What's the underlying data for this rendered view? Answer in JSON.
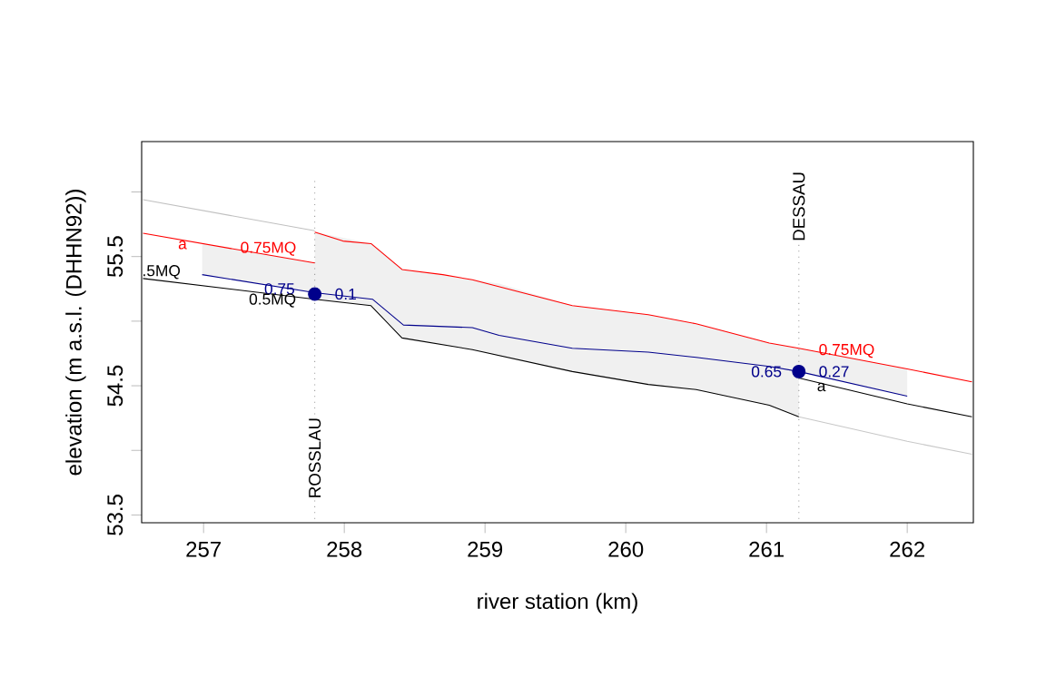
{
  "chart_data": {
    "type": "line",
    "xlabel": "river station (km)",
    "ylabel": "elevation (m a.s.l. (DHHN92))",
    "xlim": [
      256.56,
      262.47
    ],
    "ylim": [
      53.44,
      56.39
    ],
    "xticks": [
      257,
      258,
      259,
      260,
      261,
      262
    ],
    "yticks": [
      53.5,
      {
        "value": 54,
        "label": null
      },
      54.5,
      {
        "value": 55,
        "label": null
      },
      55.5,
      {
        "value": 56,
        "label": null
      }
    ],
    "series": [
      {
        "color": "#c0c0c0",
        "x": [
          256.57,
          257.79
        ],
        "values": [
          55.94,
          55.7
        ]
      },
      {
        "color": "#c8c8c8",
        "x": [
          261.23,
          262.0,
          262.46
        ],
        "values": [
          54.26,
          54.07,
          53.97
        ]
      },
      {
        "color": "#00008b",
        "x": [
          256.99,
          257.79,
          257.79,
          258.2,
          258.42,
          258.91,
          259.1,
          259.62,
          260.16,
          260.5,
          261.02,
          261.23,
          261.23,
          262.0
        ],
        "values": [
          55.36,
          55.22,
          55.22,
          55.17,
          54.97,
          54.95,
          54.89,
          54.79,
          54.76,
          54.72,
          54.65,
          54.61,
          54.61,
          54.42
        ],
        "upper": [
          55.6,
          55.45,
          55.69,
          55.6,
          55.4,
          55.32,
          55.29,
          55.12,
          55.05,
          54.98,
          54.83,
          54.79,
          54.79,
          54.63
        ],
        "lower": [
          55.36,
          55.22,
          55.17,
          55.12,
          54.87,
          54.78,
          54.73,
          54.61,
          54.51,
          54.47,
          54.35,
          54.26,
          54.61,
          54.42
        ]
      },
      {
        "color": "#ff0000",
        "x": [
          256.57,
          257.79
        ],
        "values": [
          55.68,
          55.45
        ]
      },
      {
        "color": "#ff0000",
        "x": [
          257.79,
          257.99,
          258.19,
          258.41,
          258.7,
          258.91,
          259.62,
          260.16,
          260.5,
          261.02,
          261.23,
          262.0,
          262.46
        ],
        "values": [
          55.69,
          55.62,
          55.6,
          55.4,
          55.36,
          55.32,
          55.12,
          55.05,
          54.98,
          54.83,
          54.79,
          54.63,
          54.53
        ]
      },
      {
        "color": "#000000",
        "x": [
          256.57,
          257.79,
          258.19,
          258.41,
          258.91,
          259.62,
          260.16,
          260.5,
          261.02,
          261.23
        ],
        "values": [
          55.33,
          55.17,
          55.12,
          54.87,
          54.78,
          54.61,
          54.51,
          54.47,
          54.35,
          54.26
        ]
      },
      {
        "color": "#000000",
        "x": [
          261.23,
          262.0,
          262.46
        ],
        "values": [
          54.56,
          54.36,
          54.26
        ]
      },
      {
        "type": "scatter",
        "color": "#00008b",
        "marker": "circle",
        "x": [
          257.79,
          261.23
        ],
        "values": [
          55.21,
          54.61
        ]
      }
    ],
    "ref_lines": [
      {
        "axis": "x",
        "value": 257.79,
        "label": "ROSSLAU",
        "color": "#999999",
        "line_style": "dotted"
      },
      {
        "axis": "x",
        "value": 261.23,
        "label": "DESSAU",
        "color": "#999999",
        "line_style": "dotted"
      }
    ],
    "annotations": [
      {
        "text": "0.75MQ",
        "x": 257.46,
        "y": 55.56
      },
      {
        "text": "a",
        "x": 256.85,
        "y": 55.59
      },
      {
        "text": ".5MQ",
        "x": 256.7,
        "y": 55.38
      },
      {
        "text": "0.75",
        "x": 257.54,
        "y": 55.25
      },
      {
        "text": "0.5MQ",
        "x": 257.49,
        "y": 55.16
      },
      {
        "text": "0.1",
        "x": 258.01,
        "y": 55.21
      },
      {
        "text": "0.65",
        "x": 261.0,
        "y": 54.61
      },
      {
        "text": "0.27",
        "x": 261.48,
        "y": 54.61
      },
      {
        "text": "0.75MQ",
        "x": 261.57,
        "y": 54.77
      },
      {
        "text": "a",
        "x": 261.39,
        "y": 54.49
      }
    ]
  }
}
